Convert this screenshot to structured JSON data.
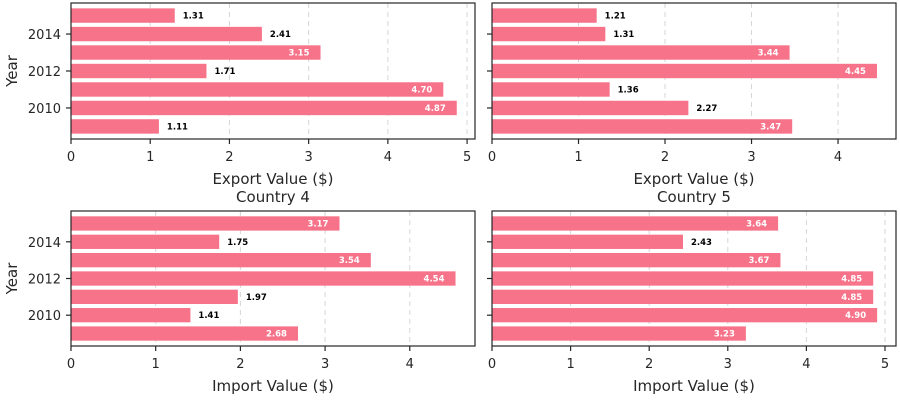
{
  "chart_data": [
    {
      "type": "bar",
      "orientation": "horizontal",
      "title": "",
      "xlabel": "Export Value ($)",
      "ylabel": "Year",
      "categories": [
        "2009",
        "2010",
        "2011",
        "2012",
        "2013",
        "2014",
        "2015"
      ],
      "values": [
        1.11,
        4.87,
        4.7,
        1.71,
        3.15,
        2.41,
        1.31
      ],
      "xlim": [
        0,
        5.1
      ],
      "xticks": [
        "0",
        "1",
        "2",
        "3",
        "4",
        "5"
      ],
      "yticks": [
        "2010",
        "2012",
        "2014"
      ],
      "grid": true,
      "color": "#f7738a"
    },
    {
      "type": "bar",
      "orientation": "horizontal",
      "title": "",
      "xlabel": "Export Value ($)",
      "ylabel": "",
      "categories": [
        "2009",
        "2010",
        "2011",
        "2012",
        "2013",
        "2014",
        "2015"
      ],
      "values": [
        3.47,
        2.27,
        1.36,
        4.45,
        3.44,
        1.31,
        1.21
      ],
      "xlim": [
        0,
        4.67
      ],
      "xticks": [
        "0",
        "1",
        "2",
        "3",
        "4"
      ],
      "yticks": [
        "2010",
        "2012",
        "2014"
      ],
      "grid": true,
      "color": "#f7738a"
    },
    {
      "type": "bar",
      "orientation": "horizontal",
      "title": "Country 4",
      "xlabel": "Import Value ($)",
      "ylabel": "Year",
      "categories": [
        "2009",
        "2010",
        "2011",
        "2012",
        "2013",
        "2014",
        "2015"
      ],
      "values": [
        2.68,
        1.41,
        1.97,
        4.54,
        3.54,
        1.75,
        3.17
      ],
      "xlim": [
        0,
        4.77
      ],
      "xticks": [
        "0",
        "1",
        "2",
        "3",
        "4"
      ],
      "yticks": [
        "2010",
        "2012",
        "2014"
      ],
      "grid": true,
      "color": "#f7738a"
    },
    {
      "type": "bar",
      "orientation": "horizontal",
      "title": "Country 5",
      "xlabel": "Import Value ($)",
      "ylabel": "",
      "categories": [
        "2009",
        "2010",
        "2011",
        "2012",
        "2013",
        "2014",
        "2015"
      ],
      "values": [
        3.23,
        4.9,
        4.85,
        4.85,
        3.67,
        2.43,
        3.64
      ],
      "xlim": [
        0,
        5.14
      ],
      "xticks": [
        "0",
        "1",
        "2",
        "3",
        "4",
        "5"
      ],
      "yticks": [
        "2010",
        "2012",
        "2014"
      ],
      "grid": true,
      "color": "#f7738a"
    }
  ]
}
